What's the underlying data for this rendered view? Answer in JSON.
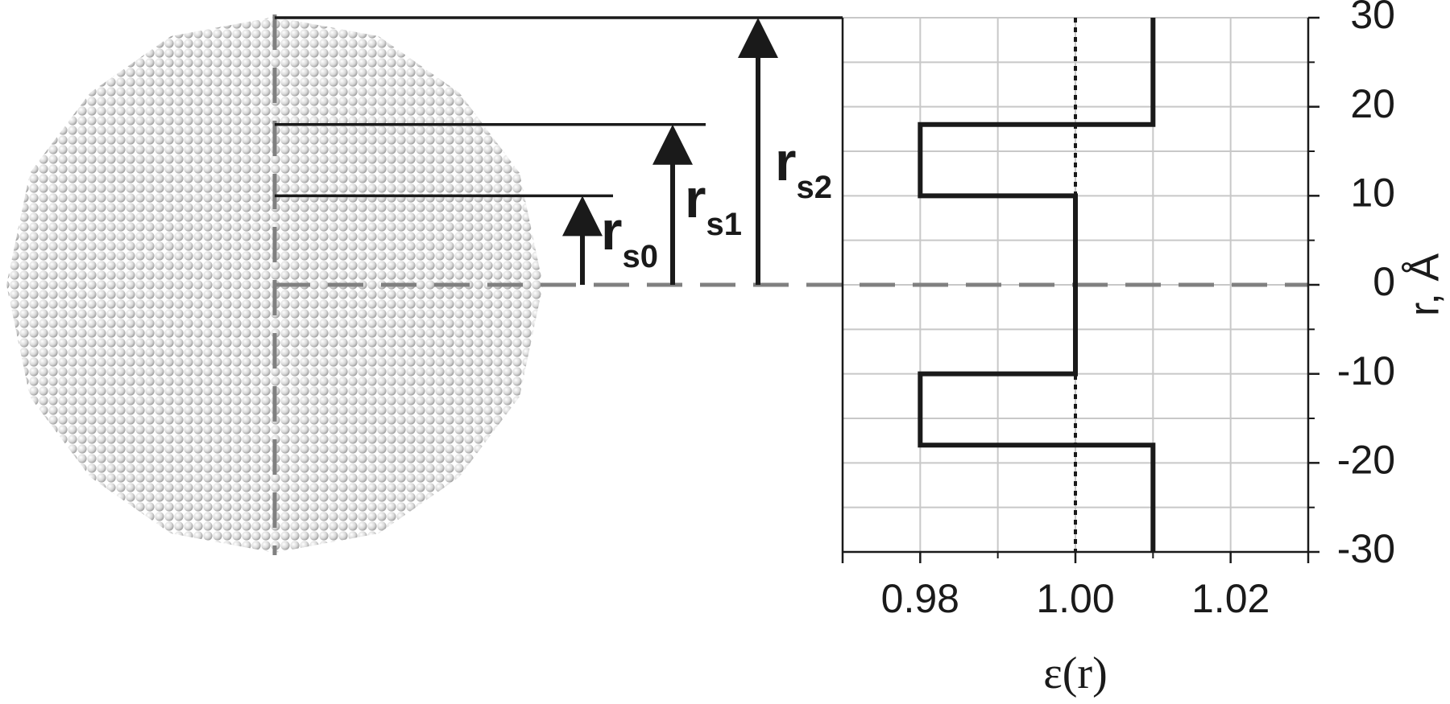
{
  "chart_data": {
    "type": "line",
    "x_label": "ε(r)",
    "y_label": "r, Å",
    "series": [
      {
        "color": "#1a1a1a",
        "x": [
          1.01,
          1.01,
          0.98,
          0.98,
          1.0,
          1.0,
          0.98,
          0.98,
          1.01,
          1.01
        ],
        "values": [
          30,
          18,
          18,
          10,
          10,
          -10,
          -10,
          -18,
          -18,
          -30
        ]
      }
    ],
    "xlim": [
      0.97,
      1.03
    ],
    "xticks": [
      {
        "value": 0.98,
        "label": "0.98"
      },
      {
        "value": 1.0,
        "label": "1.00"
      },
      {
        "value": 1.02,
        "label": "1.02"
      }
    ],
    "xminor": [
      0.99,
      1.01
    ],
    "ylim": [
      -30,
      30
    ],
    "yticks": [
      -30,
      -20,
      -10,
      0,
      10,
      20,
      30
    ],
    "yminor": [
      -25,
      -15,
      -5,
      5,
      15,
      25
    ],
    "grid": true,
    "y_axis_side": "right",
    "reference_line_x": 1.0,
    "zero_line_y": 0,
    "annotations": [
      {
        "symbol": "r",
        "subscript": "s0",
        "r": 10
      },
      {
        "symbol": "r",
        "subscript": "s1",
        "r": 18
      },
      {
        "symbol": "r",
        "subscript": "s2",
        "r": 30
      }
    ]
  }
}
